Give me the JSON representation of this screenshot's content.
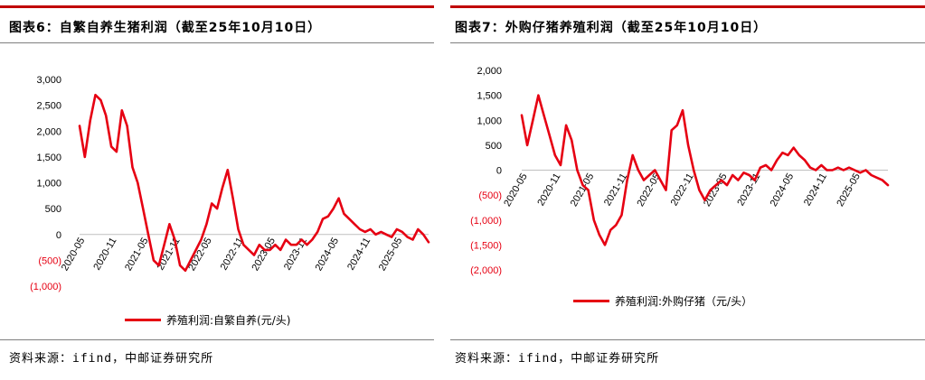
{
  "left": {
    "title": "图表6：自繁自养生猪利润（截至25年10月10日）",
    "source": "资料来源：ifind，中邮证券研究所",
    "legend": "养殖利润:自繁自养(元/头)"
  },
  "right": {
    "title": "图表7：外购仔猪养殖利润（截至25年10月10日）",
    "source": "资料来源：ifind，中邮证券研究所",
    "legend": "养殖利润:外购仔猪（元/头）"
  },
  "colors": {
    "line": "#e60012",
    "negative_label": "#e60012",
    "header_rule": "#c00000"
  },
  "chart_data": [
    {
      "type": "line",
      "ylim": [
        -1000,
        3000
      ],
      "yticks": [
        {
          "v": 3000,
          "label": "3,000"
        },
        {
          "v": 2500,
          "label": "2,500"
        },
        {
          "v": 2000,
          "label": "2,000"
        },
        {
          "v": 1500,
          "label": "1,500"
        },
        {
          "v": 1000,
          "label": "1,000"
        },
        {
          "v": 500,
          "label": "500"
        },
        {
          "v": 0,
          "label": "0"
        },
        {
          "v": -500,
          "label": "(500)"
        },
        {
          "v": -1000,
          "label": "(1,000)"
        }
      ],
      "xlim": [
        "2020-04",
        "2025-10"
      ],
      "xticks": [
        "2020-05",
        "2020-11",
        "2021-05",
        "2021-11",
        "2022-05",
        "2022-11",
        "2023-05",
        "2023-11",
        "2024-05",
        "2024-11",
        "2025-05"
      ],
      "series": [
        {
          "name": "养殖利润:自繁自养(元/头)",
          "x": [
            "2020-04",
            "2020-05",
            "2020-06",
            "2020-07",
            "2020-08",
            "2020-09",
            "2020-10",
            "2020-11",
            "2020-12",
            "2021-01",
            "2021-02",
            "2021-03",
            "2021-04",
            "2021-05",
            "2021-06",
            "2021-07",
            "2021-08",
            "2021-09",
            "2021-10",
            "2021-11",
            "2021-12",
            "2022-01",
            "2022-02",
            "2022-03",
            "2022-04",
            "2022-05",
            "2022-06",
            "2022-07",
            "2022-08",
            "2022-09",
            "2022-10",
            "2022-11",
            "2022-12",
            "2023-01",
            "2023-02",
            "2023-03",
            "2023-04",
            "2023-05",
            "2023-06",
            "2023-07",
            "2023-08",
            "2023-09",
            "2023-10",
            "2023-11",
            "2023-12",
            "2024-01",
            "2024-02",
            "2024-03",
            "2024-04",
            "2024-05",
            "2024-06",
            "2024-07",
            "2024-08",
            "2024-09",
            "2024-10",
            "2024-11",
            "2024-12",
            "2025-01",
            "2025-02",
            "2025-03",
            "2025-04",
            "2025-05",
            "2025-06",
            "2025-07",
            "2025-08",
            "2025-09",
            "2025-10"
          ],
          "y": [
            2100,
            1500,
            2200,
            2700,
            2600,
            2300,
            1700,
            1600,
            2400,
            2100,
            1300,
            1000,
            500,
            0,
            -500,
            -600,
            -200,
            200,
            -100,
            -600,
            -700,
            -500,
            -300,
            -100,
            200,
            600,
            500,
            900,
            1250,
            700,
            100,
            -200,
            -300,
            -400,
            -200,
            -300,
            -300,
            -200,
            -300,
            -100,
            -200,
            -200,
            -100,
            -200,
            -100,
            50,
            300,
            350,
            500,
            700,
            400,
            300,
            200,
            100,
            50,
            100,
            0,
            50,
            0,
            -50,
            100,
            50,
            -50,
            -100,
            100,
            0,
            -150
          ]
        }
      ]
    },
    {
      "type": "line",
      "ylim": [
        -2000,
        2000
      ],
      "yticks": [
        {
          "v": 2000,
          "label": "2,000"
        },
        {
          "v": 1500,
          "label": "1,500"
        },
        {
          "v": 1000,
          "label": "1,000"
        },
        {
          "v": 500,
          "label": "500"
        },
        {
          "v": 0,
          "label": "0"
        },
        {
          "v": -500,
          "label": "(500)"
        },
        {
          "v": -1000,
          "label": "(1,000)"
        },
        {
          "v": -1500,
          "label": "(1,500)"
        },
        {
          "v": -2000,
          "label": "(2,000)"
        }
      ],
      "xlim": [
        "2020-04",
        "2025-10"
      ],
      "xticks": [
        "2020-05",
        "2020-11",
        "2021-05",
        "2021-11",
        "2022-05",
        "2022-11",
        "2023-05",
        "2023-11",
        "2024-05",
        "2024-11",
        "2025-05"
      ],
      "series": [
        {
          "name": "养殖利润:外购仔猪（元/头）",
          "x": [
            "2020-04",
            "2020-05",
            "2020-06",
            "2020-07",
            "2020-08",
            "2020-09",
            "2020-10",
            "2020-11",
            "2020-12",
            "2021-01",
            "2021-02",
            "2021-03",
            "2021-04",
            "2021-05",
            "2021-06",
            "2021-07",
            "2021-08",
            "2021-09",
            "2021-10",
            "2021-11",
            "2021-12",
            "2022-01",
            "2022-02",
            "2022-03",
            "2022-04",
            "2022-05",
            "2022-06",
            "2022-07",
            "2022-08",
            "2022-09",
            "2022-10",
            "2022-11",
            "2022-12",
            "2023-01",
            "2023-02",
            "2023-03",
            "2023-04",
            "2023-05",
            "2023-06",
            "2023-07",
            "2023-08",
            "2023-09",
            "2023-10",
            "2023-11",
            "2023-12",
            "2024-01",
            "2024-02",
            "2024-03",
            "2024-04",
            "2024-05",
            "2024-06",
            "2024-07",
            "2024-08",
            "2024-09",
            "2024-10",
            "2024-11",
            "2024-12",
            "2025-01",
            "2025-02",
            "2025-03",
            "2025-04",
            "2025-05",
            "2025-06",
            "2025-07",
            "2025-08",
            "2025-09",
            "2025-10"
          ],
          "y": [
            1100,
            500,
            1000,
            1500,
            1100,
            700,
            300,
            100,
            900,
            600,
            0,
            -300,
            -400,
            -1000,
            -1300,
            -1500,
            -1200,
            -1100,
            -900,
            -200,
            300,
            0,
            -200,
            -100,
            0,
            -200,
            -400,
            800,
            900,
            1200,
            500,
            0,
            -400,
            -600,
            -400,
            -300,
            -200,
            -300,
            -100,
            -200,
            -50,
            -100,
            -200,
            50,
            100,
            0,
            200,
            350,
            300,
            450,
            300,
            200,
            50,
            0,
            100,
            0,
            0,
            50,
            0,
            50,
            0,
            -50,
            0,
            -100,
            -150,
            -200,
            -300
          ]
        }
      ]
    }
  ]
}
